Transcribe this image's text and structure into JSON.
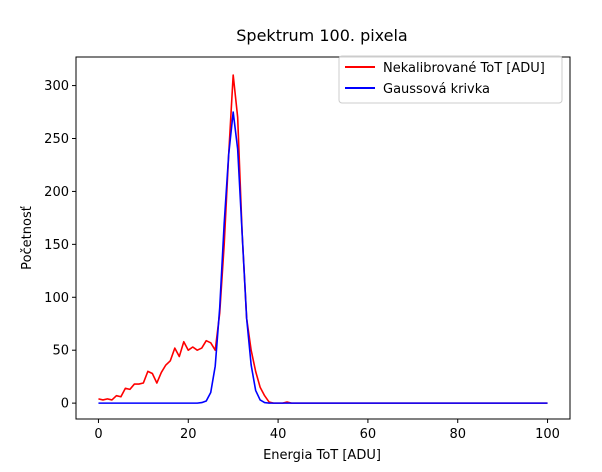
{
  "chart_data": {
    "type": "line",
    "title": "Spektrum 100. pixela",
    "xlabel": "Energia ToT [ADU]",
    "ylabel": "Početnosť",
    "xlim": [
      -5,
      105
    ],
    "ylim": [
      -15,
      327
    ],
    "x_ticks": [
      0,
      20,
      40,
      60,
      80,
      100
    ],
    "y_ticks": [
      0,
      50,
      100,
      150,
      200,
      250,
      300
    ],
    "grid": false,
    "legend_position": "top-right",
    "series": [
      {
        "name": "Nekalibrované ToT [ADU]",
        "color": "#ff0000",
        "x": [
          0,
          1,
          2,
          3,
          4,
          5,
          6,
          7,
          8,
          9,
          10,
          11,
          12,
          13,
          14,
          15,
          16,
          17,
          18,
          19,
          20,
          21,
          22,
          23,
          24,
          25,
          26,
          27,
          28,
          29,
          30,
          31,
          32,
          33,
          34,
          35,
          36,
          37,
          38,
          39,
          40,
          41,
          42,
          43,
          44,
          45,
          50,
          60,
          70,
          80,
          90,
          100
        ],
        "y": [
          4,
          3,
          4,
          3,
          7,
          6,
          14,
          13,
          18,
          18,
          19,
          30,
          28,
          19,
          29,
          36,
          40,
          52,
          44,
          58,
          50,
          53,
          50,
          52,
          59,
          57,
          50,
          85,
          150,
          235,
          310,
          270,
          160,
          80,
          50,
          30,
          15,
          7,
          1,
          0,
          0,
          0,
          1,
          0,
          0,
          0,
          0,
          0,
          0,
          0,
          0,
          0
        ]
      },
      {
        "name": "Gaussová krivka",
        "color": "#0000ff",
        "x": [
          0,
          10,
          20,
          22,
          23,
          24,
          25,
          26,
          27,
          28,
          29,
          30,
          31,
          32,
          33,
          34,
          35,
          36,
          37,
          38,
          39,
          40,
          45,
          50,
          60,
          70,
          80,
          90,
          100
        ],
        "y": [
          0,
          0,
          0,
          0,
          0.5,
          2,
          10,
          35,
          90,
          170,
          235,
          275,
          240,
          160,
          80,
          36,
          12,
          3,
          0.5,
          0,
          0,
          0,
          0,
          0,
          0,
          0,
          0,
          0,
          0
        ]
      }
    ]
  }
}
